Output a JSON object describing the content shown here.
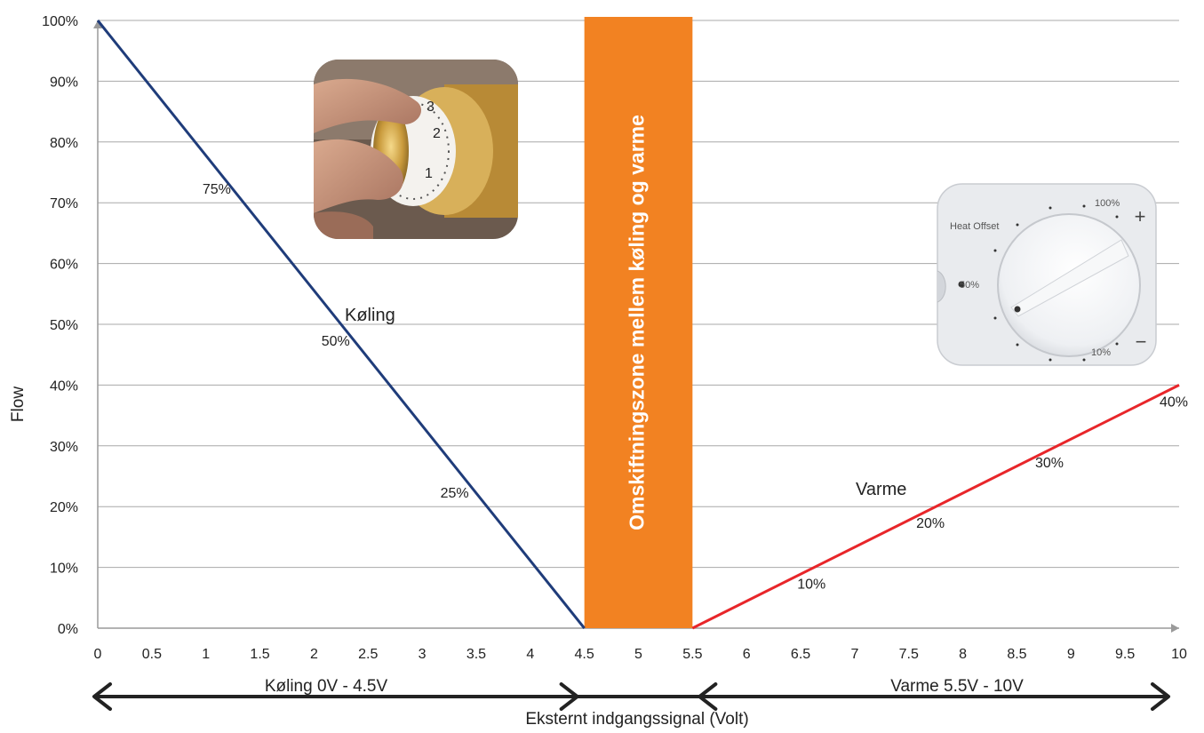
{
  "chart_data": {
    "type": "line",
    "ylabel": "Flow",
    "xlabel": "Eksternt indgangssignal (Volt)",
    "xlim": [
      0,
      10
    ],
    "ylim": [
      0,
      100
    ],
    "x_ticks": [
      0,
      0.5,
      1,
      1.5,
      2,
      2.5,
      3,
      3.5,
      4,
      4.5,
      5,
      5.5,
      6,
      6.5,
      7,
      7.5,
      8,
      8.5,
      9,
      9.5,
      10
    ],
    "y_ticks": [
      "0%",
      "10%",
      "20%",
      "30%",
      "40%",
      "50%",
      "60%",
      "70%",
      "80%",
      "90%",
      "100%"
    ],
    "grid": true,
    "series": [
      {
        "name": "Køling",
        "color": "#1f3c7a",
        "x": [
          0,
          4.5
        ],
        "y": [
          100,
          0
        ],
        "point_labels": [
          {
            "x": 1.1,
            "y": 75,
            "text": "75%"
          },
          {
            "x": 2.2,
            "y": 50,
            "text": "50%"
          },
          {
            "x": 3.3,
            "y": 25,
            "text": "25%"
          }
        ]
      },
      {
        "name": "Varme",
        "color": "#e8262a",
        "x": [
          5.5,
          10
        ],
        "y": [
          0,
          40
        ],
        "point_labels": [
          {
            "x": 6.6,
            "y": 10,
            "text": "10%"
          },
          {
            "x": 7.7,
            "y": 20,
            "text": "20%"
          },
          {
            "x": 8.8,
            "y": 30,
            "text": "30%"
          },
          {
            "x": 10,
            "y": 40,
            "text": "40%"
          }
        ]
      }
    ],
    "band": {
      "x_from": 4.5,
      "x_to": 5.5,
      "color": "#f28222",
      "text": "Omskiftningszone mellem køling og varme"
    },
    "ranges": [
      {
        "text": "Køling 0V - 4.5V",
        "from": 0,
        "to": 4.5
      },
      {
        "text": "Varme 5.5V - 10V",
        "from": 5.5,
        "to": 10
      }
    ],
    "dial": {
      "title": "Heat Offset",
      "labels": [
        "100%",
        "50%",
        "10%"
      ],
      "plus": "+",
      "minus": "−"
    }
  }
}
